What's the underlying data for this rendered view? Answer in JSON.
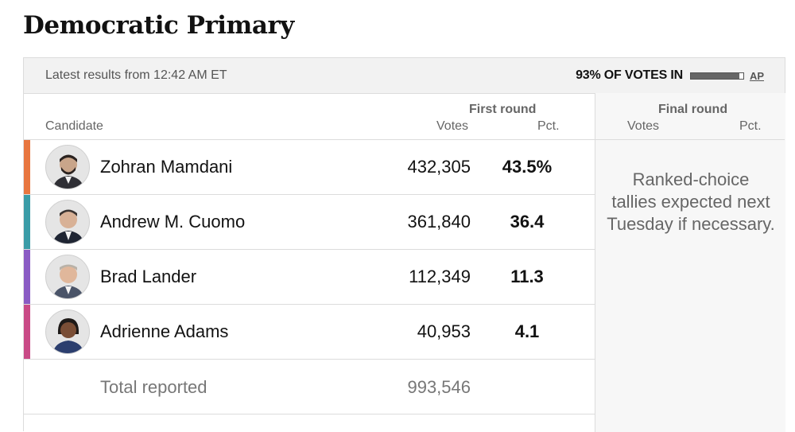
{
  "page": {
    "title": "Democratic Primary"
  },
  "topbar": {
    "latest": "Latest results from 12:42 AM ET",
    "votes_in": "93% OF VOTES IN",
    "votes_in_fraction": 0.93,
    "source": "AP"
  },
  "headers": {
    "candidate": "Candidate",
    "first_round": "First round",
    "final_round": "Final round",
    "votes": "Votes",
    "pct": "Pct."
  },
  "candidates": [
    {
      "name": "Zohran Mamdani",
      "votes": "432,305",
      "pct": "43.5%",
      "color": "#e8763f"
    },
    {
      "name": "Andrew M. Cuomo",
      "votes": "361,840",
      "pct": "36.4",
      "color": "#3a9ca7"
    },
    {
      "name": "Brad Lander",
      "votes": "112,349",
      "pct": "11.3",
      "color": "#8a5bc4"
    },
    {
      "name": "Adrienne Adams",
      "votes": "40,953",
      "pct": "4.1",
      "color": "#c94a86"
    }
  ],
  "total": {
    "label": "Total reported",
    "votes": "993,546"
  },
  "final_round_note": {
    "line1": "Ranked-choice",
    "line2": "tallies expected next",
    "line3": "Tuesday if necessary."
  }
}
